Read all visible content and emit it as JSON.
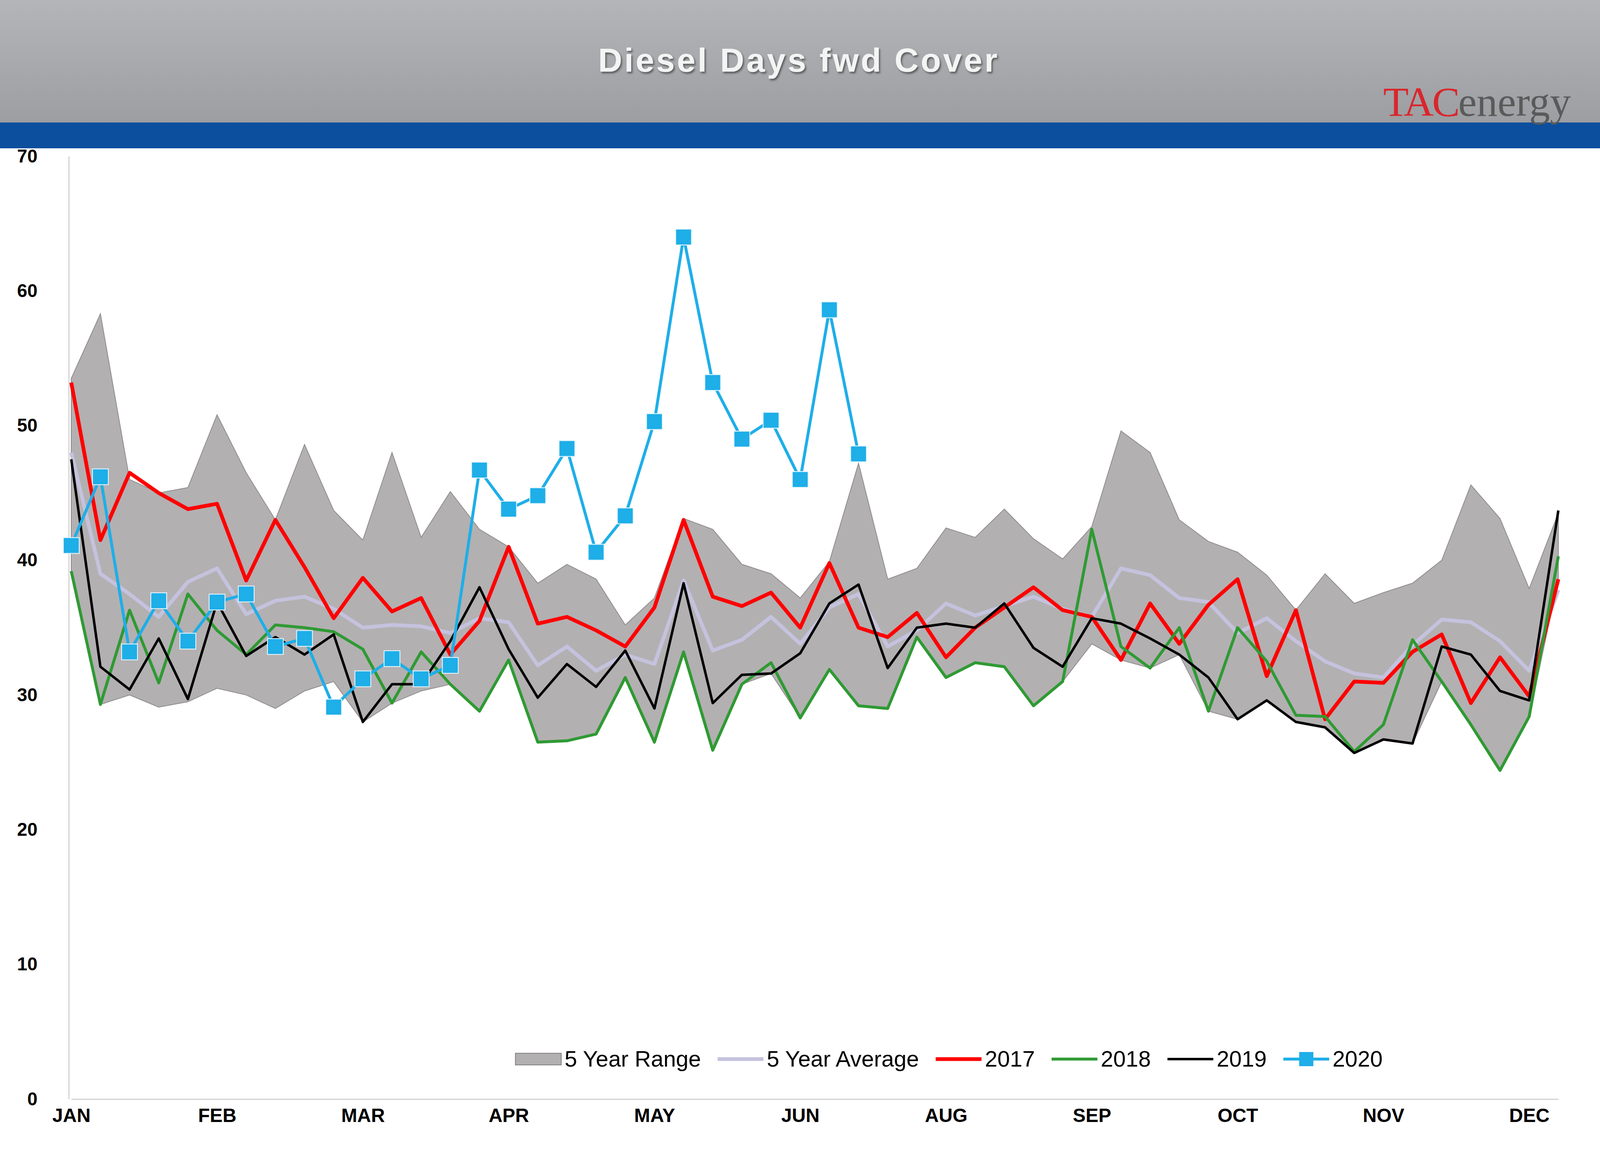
{
  "chart_data": {
    "type": "line",
    "title": "Diesel Days fwd Cover",
    "annotations": [
      "TACenergy"
    ],
    "categories": [
      "JAN",
      null,
      null,
      null,
      null,
      "FEB",
      null,
      null,
      null,
      null,
      "MAR",
      null,
      null,
      null,
      null,
      "APR",
      null,
      null,
      null,
      null,
      "MAY",
      null,
      null,
      null,
      null,
      "JUN",
      null,
      null,
      null,
      null,
      "AUG",
      null,
      null,
      null,
      null,
      "SEP",
      null,
      null,
      null,
      null,
      "OCT",
      null,
      null,
      null,
      null,
      "NOV",
      null,
      null,
      null,
      null,
      "DEC",
      null
    ],
    "ylim": [
      0,
      70
    ],
    "yticks": [
      0,
      10,
      20,
      30,
      40,
      50,
      60,
      70
    ],
    "grid": false,
    "legend": "bottom",
    "series": [
      {
        "name": "5 Year Range",
        "type": "range",
        "color": "#b3b0b2",
        "values": [
          53.5,
          58.3,
          46.0,
          45.0,
          45.4,
          50.8,
          46.5,
          43.0,
          48.6,
          43.7,
          41.5,
          48.0,
          41.7,
          45.1,
          42.3,
          41.0,
          38.3,
          39.7,
          38.6,
          35.2,
          37.2,
          43.1,
          42.3,
          39.7,
          39.0,
          37.2,
          39.9,
          47.2,
          38.6,
          39.4,
          42.4,
          41.7,
          43.8,
          41.6,
          40.1,
          42.5,
          49.6,
          48.0,
          43.0,
          41.4,
          40.6,
          38.9,
          36.3,
          39.0,
          36.8,
          37.6,
          38.3,
          40.0,
          45.6,
          43.1,
          37.9,
          43.5
        ],
        "low": [
          39.0,
          29.3,
          30.0,
          29.1,
          29.5,
          30.5,
          30.0,
          29.0,
          30.3,
          31.0,
          28.0,
          29.4,
          30.3,
          30.8,
          28.8,
          32.6,
          26.5,
          26.6,
          27.1,
          31.3,
          26.5,
          33.2,
          25.9,
          30.8,
          31.6,
          28.3,
          31.9,
          29.2,
          29.0,
          34.3,
          31.3,
          32.4,
          32.1,
          29.2,
          31.0,
          33.8,
          32.6,
          32.0,
          33.0,
          28.8,
          28.2,
          29.6,
          28.0,
          27.6,
          25.7,
          26.7,
          26.4,
          31.0,
          27.8,
          24.4,
          28.4,
          38.6
        ]
      },
      {
        "name": "5 Year Average",
        "type": "line",
        "color": "#c4c2dd",
        "values": [
          48.0,
          39.0,
          37.5,
          35.8,
          38.4,
          39.4,
          36.0,
          37.0,
          37.3,
          36.4,
          35.0,
          35.2,
          35.1,
          34.6,
          35.7,
          35.4,
          32.2,
          33.6,
          31.8,
          33.0,
          32.3,
          38.5,
          33.3,
          34.1,
          35.8,
          33.8,
          36.5,
          37.5,
          33.6,
          34.8,
          36.8,
          35.9,
          36.6,
          37.3,
          36.4,
          35.8,
          39.4,
          38.9,
          37.2,
          36.9,
          34.6,
          35.7,
          34.0,
          32.5,
          31.6,
          31.3,
          33.7,
          35.6,
          35.4,
          34.0,
          31.8,
          37.8
        ]
      },
      {
        "name": "2017",
        "type": "line",
        "color": "#ff0000",
        "values": [
          53.2,
          41.5,
          46.5,
          45.0,
          43.8,
          44.2,
          38.5,
          43.0,
          39.5,
          35.7,
          38.7,
          36.2,
          37.2,
          33.0,
          35.5,
          41.0,
          35.3,
          35.8,
          34.8,
          33.6,
          36.5,
          43.0,
          37.3,
          36.6,
          37.6,
          35.0,
          39.8,
          35.0,
          34.3,
          36.1,
          32.8,
          35.0,
          36.5,
          38.0,
          36.3,
          35.8,
          32.6,
          36.8,
          33.8,
          36.7,
          38.6,
          31.4,
          36.3,
          28.2,
          31.0,
          30.9,
          33.2,
          34.5,
          29.4,
          32.8,
          29.9,
          38.6
        ]
      },
      {
        "name": "2018",
        "type": "line",
        "color": "#2f9a33",
        "values": [
          39.2,
          29.3,
          36.3,
          30.9,
          37.5,
          34.8,
          33.0,
          35.2,
          35.0,
          34.7,
          33.4,
          29.4,
          33.2,
          30.8,
          28.8,
          32.6,
          26.5,
          26.6,
          27.1,
          31.3,
          26.5,
          33.2,
          25.9,
          30.8,
          32.4,
          28.3,
          31.9,
          29.2,
          29.0,
          34.3,
          31.3,
          32.4,
          32.1,
          29.2,
          31.0,
          42.3,
          33.6,
          32.0,
          35.0,
          28.8,
          35.0,
          32.5,
          28.5,
          28.4,
          25.8,
          27.8,
          34.1,
          31.0,
          27.8,
          24.4,
          28.4,
          40.3
        ]
      },
      {
        "name": "2019",
        "type": "line",
        "color": "#000000",
        "values": [
          47.5,
          32.1,
          30.4,
          34.2,
          29.7,
          36.9,
          32.9,
          34.3,
          33.0,
          34.5,
          28.0,
          30.8,
          30.8,
          34.0,
          38.0,
          33.4,
          29.8,
          32.3,
          30.6,
          33.3,
          29.0,
          38.3,
          29.4,
          31.5,
          31.6,
          33.1,
          36.8,
          38.2,
          32.0,
          35.0,
          35.3,
          35.0,
          36.8,
          33.5,
          32.1,
          35.7,
          35.3,
          34.2,
          33.0,
          31.3,
          28.2,
          29.6,
          28.0,
          27.6,
          25.7,
          26.7,
          26.4,
          33.6,
          33.0,
          30.3,
          29.6,
          43.7
        ]
      },
      {
        "name": "2020",
        "type": "line",
        "color": "#1eaee8",
        "marker": "square",
        "values": [
          41.1,
          46.2,
          33.2,
          37.0,
          34.0,
          36.9,
          37.5,
          33.6,
          34.2,
          29.1,
          31.2,
          32.7,
          31.2,
          32.2,
          46.7,
          43.8,
          44.8,
          48.3,
          40.6,
          43.3,
          50.3,
          64.0,
          53.2,
          49.0,
          50.4,
          46.0,
          58.6,
          47.9,
          null,
          null,
          null,
          null,
          null,
          null,
          null,
          null,
          null,
          null,
          null,
          null,
          null,
          null,
          null,
          null,
          null,
          null,
          null,
          null,
          null,
          null,
          null,
          null
        ]
      }
    ]
  }
}
